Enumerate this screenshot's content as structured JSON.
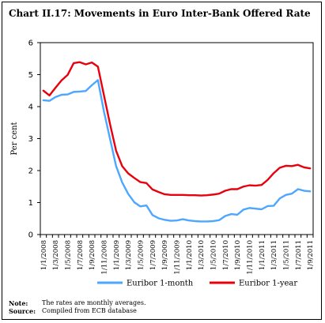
{
  "title": "Chart II.17: Movements in Euro Inter-Bank Offered Rate",
  "notes": [
    {
      "label": "Note:",
      "text": "The rates are monthly averages."
    },
    {
      "label": "Source:",
      "text": "Compiled from ECB database"
    }
  ],
  "colors": {
    "series_1m": "#4da6ff",
    "series_1y": "#e8000d"
  },
  "chart_data": {
    "type": "line",
    "title": "Chart II.17: Movements in Euro Inter-Bank Offered Rate",
    "xlabel": "",
    "ylabel": "Per cent",
    "ylim": [
      0,
      6
    ],
    "yticks": [
      0,
      1,
      2,
      3,
      4,
      5,
      6
    ],
    "grid": false,
    "legend_position": "bottom",
    "x": [
      "1/1/2008",
      "1/2/2008",
      "1/3/2008",
      "1/4/2008",
      "1/5/2008",
      "1/6/2008",
      "1/7/2008",
      "1/8/2008",
      "1/9/2008",
      "1/10/2008",
      "1/11/2008",
      "1/12/2008",
      "1/1/2009",
      "1/2/2009",
      "1/3/2009",
      "1/4/2009",
      "1/5/2009",
      "1/6/2009",
      "1/7/2009",
      "1/8/2009",
      "1/9/2009",
      "1/10/2009",
      "1/11/2009",
      "1/12/2009",
      "1/1/2010",
      "1/2/2010",
      "1/3/2010",
      "1/4/2010",
      "1/5/2010",
      "1/6/2010",
      "1/7/2010",
      "1/8/2010",
      "1/9/2010",
      "1/10/2010",
      "1/11/2010",
      "1/12/2010",
      "1/1/2011",
      "1/2/2011",
      "1/3/2011",
      "1/4/2011",
      "1/5/2011",
      "1/6/2011",
      "1/7/2011",
      "1/8/2011",
      "1/9/2011"
    ],
    "tick_labels": [
      "1/1/2008",
      "1/3/2008",
      "1/5/2008",
      "1/7/2008",
      "1/9/2008",
      "1/11/2008",
      "1/1/2009",
      "1/3/2009",
      "1/5/2009",
      "1/7/2009",
      "1/9/2009",
      "1/11/2009",
      "1/1/2010",
      "1/3/2010",
      "1/5/2010",
      "1/7/2010",
      "1/9/2010",
      "1/11/2010",
      "1/1/2011",
      "1/3/2011",
      "1/5/2011",
      "1/7/2011",
      "1/9/2011"
    ],
    "series": [
      {
        "name": "Euribor 1-month",
        "values": [
          4.2,
          4.18,
          4.3,
          4.37,
          4.38,
          4.46,
          4.47,
          4.49,
          4.67,
          4.83,
          3.84,
          2.99,
          2.14,
          1.63,
          1.27,
          1.01,
          0.88,
          0.91,
          0.61,
          0.51,
          0.46,
          0.43,
          0.44,
          0.48,
          0.44,
          0.42,
          0.41,
          0.41,
          0.42,
          0.45,
          0.58,
          0.64,
          0.62,
          0.78,
          0.83,
          0.81,
          0.79,
          0.89,
          0.9,
          1.13,
          1.24,
          1.28,
          1.42,
          1.37,
          1.35
        ]
      },
      {
        "name": "Euribor 1-year",
        "values": [
          4.5,
          4.35,
          4.59,
          4.82,
          4.99,
          5.36,
          5.39,
          5.32,
          5.38,
          5.25,
          4.35,
          3.45,
          2.62,
          2.14,
          1.91,
          1.77,
          1.64,
          1.61,
          1.41,
          1.33,
          1.26,
          1.24,
          1.24,
          1.24,
          1.23,
          1.23,
          1.22,
          1.23,
          1.25,
          1.28,
          1.37,
          1.42,
          1.42,
          1.5,
          1.54,
          1.53,
          1.55,
          1.71,
          1.92,
          2.09,
          2.15,
          2.14,
          2.18,
          2.1,
          2.07
        ]
      }
    ]
  }
}
